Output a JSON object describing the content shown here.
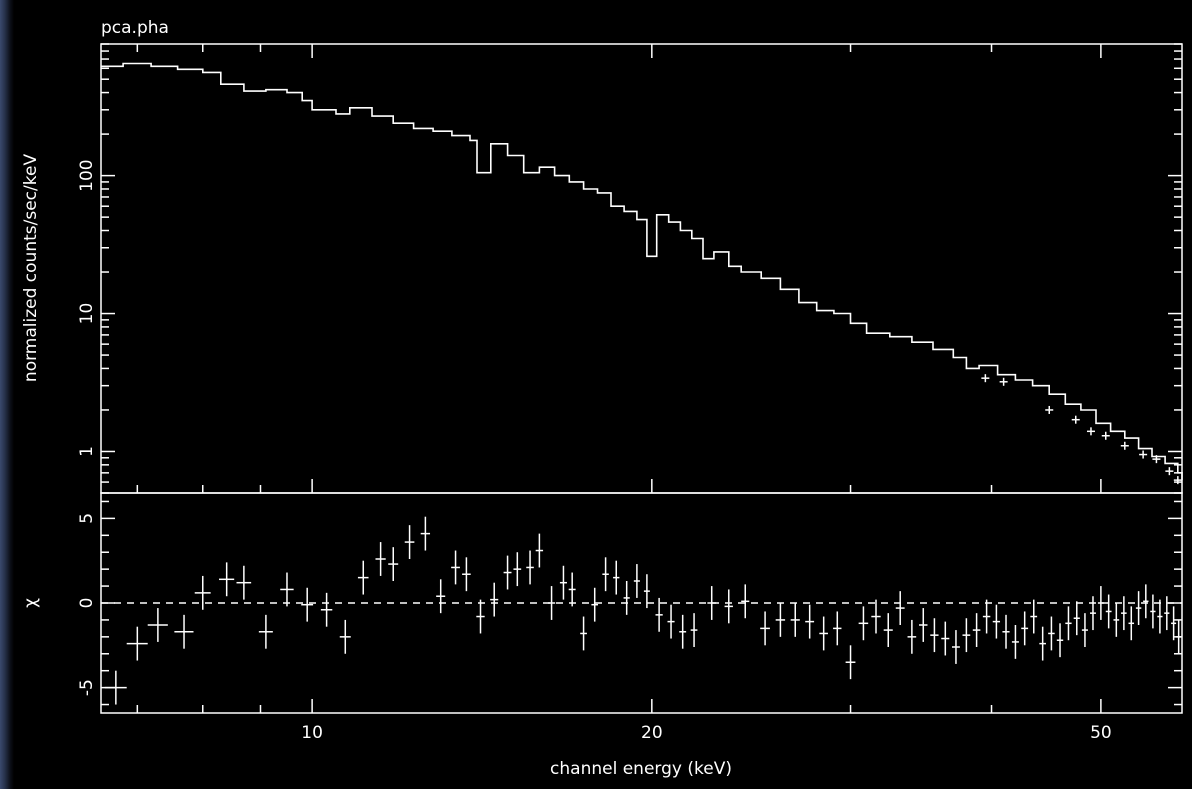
{
  "colors": {
    "background": "#000000",
    "foreground": "#ffffff",
    "edge_glow": "#3a4a6e"
  },
  "plot_label": "pca.pha",
  "top_title": "",
  "chart_data": [
    {
      "type": "step",
      "panel": "spectrum",
      "ylabel": "normalized counts/sec/keV",
      "yscale": "log",
      "xscale": "log",
      "xlim": [
        6.5,
        59
      ],
      "ylim": [
        0.5,
        900
      ],
      "y_ticks": [
        {
          "value": 1,
          "label": "1"
        },
        {
          "value": 10,
          "label": "10"
        },
        {
          "value": 100,
          "label": "100"
        }
      ],
      "model_steps": [
        [
          6.5,
          620
        ],
        [
          6.8,
          650
        ],
        [
          7.2,
          620
        ],
        [
          7.6,
          590
        ],
        [
          8.0,
          560
        ],
        [
          8.3,
          460
        ],
        [
          8.7,
          410
        ],
        [
          9.1,
          420
        ],
        [
          9.5,
          400
        ],
        [
          9.8,
          350
        ],
        [
          10.0,
          300
        ],
        [
          10.5,
          280
        ],
        [
          10.8,
          310
        ],
        [
          11.3,
          270
        ],
        [
          11.8,
          240
        ],
        [
          12.3,
          220
        ],
        [
          12.8,
          210
        ],
        [
          13.3,
          195
        ],
        [
          13.8,
          180
        ],
        [
          14.0,
          105
        ],
        [
          14.4,
          170
        ],
        [
          14.9,
          140
        ],
        [
          15.4,
          105
        ],
        [
          15.9,
          115
        ],
        [
          16.4,
          100
        ],
        [
          16.9,
          90
        ],
        [
          17.4,
          80
        ],
        [
          17.9,
          75
        ],
        [
          18.4,
          60
        ],
        [
          18.9,
          55
        ],
        [
          19.4,
          48
        ],
        [
          19.8,
          26
        ],
        [
          20.2,
          52
        ],
        [
          20.7,
          46
        ],
        [
          21.2,
          40
        ],
        [
          21.7,
          35
        ],
        [
          22.2,
          25
        ],
        [
          22.7,
          28
        ],
        [
          23.4,
          22
        ],
        [
          24.0,
          20
        ],
        [
          25.0,
          18
        ],
        [
          26.0,
          15
        ],
        [
          27.0,
          12
        ],
        [
          28.0,
          10.5
        ],
        [
          29.0,
          10
        ],
        [
          30.0,
          8.5
        ],
        [
          31.0,
          7.2
        ],
        [
          32.5,
          6.8
        ],
        [
          34.0,
          6.2
        ],
        [
          35.5,
          5.5
        ],
        [
          37.0,
          4.8
        ],
        [
          38.0,
          4.0
        ],
        [
          39.0,
          4.2
        ],
        [
          40.5,
          3.6
        ],
        [
          42.0,
          3.3
        ],
        [
          43.5,
          3.0
        ],
        [
          45.0,
          2.6
        ],
        [
          46.5,
          2.2
        ],
        [
          48.0,
          2.0
        ],
        [
          49.5,
          1.6
        ],
        [
          51.0,
          1.4
        ],
        [
          52.5,
          1.25
        ],
        [
          54.0,
          1.05
        ],
        [
          55.5,
          0.92
        ],
        [
          57.0,
          0.82
        ],
        [
          58.5,
          0.7
        ],
        [
          59.0,
          0.62
        ]
      ],
      "data_points": [
        [
          39.5,
          3.4
        ],
        [
          41.0,
          3.2
        ],
        [
          45.0,
          2.0
        ],
        [
          47.5,
          1.7
        ],
        [
          49.0,
          1.4
        ],
        [
          50.5,
          1.3
        ],
        [
          52.5,
          1.1
        ],
        [
          54.5,
          0.95
        ],
        [
          56.0,
          0.88
        ],
        [
          57.5,
          0.72
        ],
        [
          58.5,
          0.62
        ]
      ]
    },
    {
      "type": "errorbar",
      "panel": "residuals",
      "ylabel": "χ",
      "ylim": [
        -6.5,
        6.5
      ],
      "y_ticks": [
        {
          "value": -5,
          "label": "-5"
        },
        {
          "value": 0,
          "label": "0"
        },
        {
          "value": 5,
          "label": "5"
        }
      ],
      "zero_line": 0,
      "xlabel": "channel energy (keV)",
      "x_ticks": [
        {
          "value": 10,
          "label": "10"
        },
        {
          "value": 20,
          "label": "20"
        },
        {
          "value": 50,
          "label": "50"
        }
      ],
      "points": [
        {
          "x": 6.7,
          "y": -5.0,
          "xerr": 0.15
        },
        {
          "x": 7.0,
          "y": -2.4,
          "xerr": 0.15
        },
        {
          "x": 7.3,
          "y": -1.3,
          "xerr": 0.15
        },
        {
          "x": 7.7,
          "y": -1.7,
          "xerr": 0.15
        },
        {
          "x": 8.0,
          "y": 0.6,
          "xerr": 0.13
        },
        {
          "x": 8.4,
          "y": 1.4,
          "xerr": 0.13
        },
        {
          "x": 8.7,
          "y": 1.2,
          "xerr": 0.13
        },
        {
          "x": 9.1,
          "y": -1.7,
          "xerr": 0.13
        },
        {
          "x": 9.5,
          "y": 0.8,
          "xerr": 0.13
        },
        {
          "x": 9.9,
          "y": -0.1,
          "xerr": 0.12
        },
        {
          "x": 10.3,
          "y": -0.4,
          "xerr": 0.12
        },
        {
          "x": 10.7,
          "y": -2.0,
          "xerr": 0.12
        },
        {
          "x": 11.1,
          "y": 1.5,
          "xerr": 0.12
        },
        {
          "x": 11.5,
          "y": 2.6,
          "xerr": 0.12
        },
        {
          "x": 11.8,
          "y": 2.3,
          "xerr": 0.12
        },
        {
          "x": 12.2,
          "y": 3.6,
          "xerr": 0.12
        },
        {
          "x": 12.6,
          "y": 4.1,
          "xerr": 0.12
        },
        {
          "x": 13.0,
          "y": 0.4,
          "xerr": 0.12
        },
        {
          "x": 13.4,
          "y": 2.1,
          "xerr": 0.12
        },
        {
          "x": 13.7,
          "y": 1.7,
          "xerr": 0.12
        },
        {
          "x": 14.1,
          "y": -0.8,
          "xerr": 0.12
        },
        {
          "x": 14.5,
          "y": 0.2,
          "xerr": 0.12
        },
        {
          "x": 14.9,
          "y": 1.8,
          "xerr": 0.12
        },
        {
          "x": 15.2,
          "y": 2.0,
          "xerr": 0.12
        },
        {
          "x": 15.6,
          "y": 2.1,
          "xerr": 0.12
        },
        {
          "x": 15.9,
          "y": 3.1,
          "xerr": 0.12
        },
        {
          "x": 16.3,
          "y": 0.0,
          "xerr": 0.12
        },
        {
          "x": 16.7,
          "y": 1.2,
          "xerr": 0.12
        },
        {
          "x": 17.0,
          "y": 0.8,
          "xerr": 0.12
        },
        {
          "x": 17.4,
          "y": -1.8,
          "xerr": 0.12
        },
        {
          "x": 17.8,
          "y": -0.1,
          "xerr": 0.12
        },
        {
          "x": 18.2,
          "y": 1.7,
          "xerr": 0.12
        },
        {
          "x": 18.6,
          "y": 1.5,
          "xerr": 0.12
        },
        {
          "x": 19.0,
          "y": 0.3,
          "xerr": 0.12
        },
        {
          "x": 19.4,
          "y": 1.3,
          "xerr": 0.12
        },
        {
          "x": 19.8,
          "y": 0.7,
          "xerr": 0.12
        },
        {
          "x": 20.3,
          "y": -0.7,
          "xerr": 0.15
        },
        {
          "x": 20.8,
          "y": -1.1,
          "xerr": 0.15
        },
        {
          "x": 21.3,
          "y": -1.7,
          "xerr": 0.15
        },
        {
          "x": 21.8,
          "y": -1.6,
          "xerr": 0.15
        },
        {
          "x": 22.6,
          "y": 0.0,
          "xerr": 0.2
        },
        {
          "x": 23.4,
          "y": -0.2,
          "xerr": 0.2
        },
        {
          "x": 24.2,
          "y": 0.1,
          "xerr": 0.2
        },
        {
          "x": 25.2,
          "y": -1.5,
          "xerr": 0.25
        },
        {
          "x": 26.0,
          "y": -1.0,
          "xerr": 0.25
        },
        {
          "x": 26.8,
          "y": -1.0,
          "xerr": 0.25
        },
        {
          "x": 27.6,
          "y": -1.1,
          "xerr": 0.25
        },
        {
          "x": 28.4,
          "y": -1.8,
          "xerr": 0.25
        },
        {
          "x": 29.2,
          "y": -1.5,
          "xerr": 0.25
        },
        {
          "x": 30.0,
          "y": -3.5,
          "xerr": 0.3
        },
        {
          "x": 30.8,
          "y": -1.2,
          "xerr": 0.3
        },
        {
          "x": 31.6,
          "y": -0.8,
          "xerr": 0.3
        },
        {
          "x": 32.4,
          "y": -1.6,
          "xerr": 0.3
        },
        {
          "x": 33.2,
          "y": -0.3,
          "xerr": 0.3
        },
        {
          "x": 34.0,
          "y": -2.0,
          "xerr": 0.3
        },
        {
          "x": 34.8,
          "y": -1.3,
          "xerr": 0.3
        },
        {
          "x": 35.6,
          "y": -1.9,
          "xerr": 0.3
        },
        {
          "x": 36.4,
          "y": -2.1,
          "xerr": 0.3
        },
        {
          "x": 37.2,
          "y": -2.6,
          "xerr": 0.3
        },
        {
          "x": 38.0,
          "y": -1.9,
          "xerr": 0.3
        },
        {
          "x": 38.8,
          "y": -1.6,
          "xerr": 0.3
        },
        {
          "x": 39.6,
          "y": -0.8,
          "xerr": 0.3
        },
        {
          "x": 40.4,
          "y": -1.1,
          "xerr": 0.3
        },
        {
          "x": 41.2,
          "y": -1.7,
          "xerr": 0.3
        },
        {
          "x": 42.0,
          "y": -2.3,
          "xerr": 0.3
        },
        {
          "x": 42.8,
          "y": -1.5,
          "xerr": 0.3
        },
        {
          "x": 43.6,
          "y": -0.8,
          "xerr": 0.3
        },
        {
          "x": 44.4,
          "y": -2.4,
          "xerr": 0.3
        },
        {
          "x": 45.2,
          "y": -1.8,
          "xerr": 0.3
        },
        {
          "x": 46.0,
          "y": -2.2,
          "xerr": 0.3
        },
        {
          "x": 46.8,
          "y": -1.2,
          "xerr": 0.3
        },
        {
          "x": 47.6,
          "y": -0.9,
          "xerr": 0.3
        },
        {
          "x": 48.4,
          "y": -1.6,
          "xerr": 0.3
        },
        {
          "x": 49.2,
          "y": -0.6,
          "xerr": 0.3
        },
        {
          "x": 50.0,
          "y": 0.0,
          "xerr": 0.3
        },
        {
          "x": 50.8,
          "y": -0.5,
          "xerr": 0.3
        },
        {
          "x": 51.6,
          "y": -1.0,
          "xerr": 0.3
        },
        {
          "x": 52.4,
          "y": -0.6,
          "xerr": 0.3
        },
        {
          "x": 53.2,
          "y": -1.2,
          "xerr": 0.3
        },
        {
          "x": 54.0,
          "y": -0.3,
          "xerr": 0.3
        },
        {
          "x": 54.8,
          "y": 0.1,
          "xerr": 0.3
        },
        {
          "x": 55.6,
          "y": -0.5,
          "xerr": 0.3
        },
        {
          "x": 56.4,
          "y": -0.8,
          "xerr": 0.3
        },
        {
          "x": 57.2,
          "y": -0.6,
          "xerr": 0.3
        },
        {
          "x": 58.0,
          "y": -1.2,
          "xerr": 0.3
        },
        {
          "x": 58.6,
          "y": -2.0,
          "xerr": 0.3
        }
      ]
    }
  ]
}
